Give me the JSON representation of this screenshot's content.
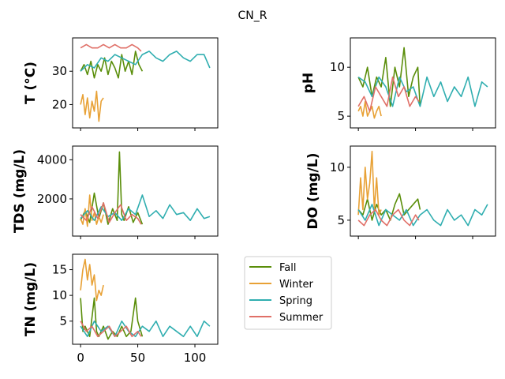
{
  "chart_data": {
    "title": "CN_R",
    "type": "line",
    "legend": {
      "placement": "right of bottom-left panel",
      "entries": [
        "Fall",
        "Winter",
        "Spring",
        "Summer"
      ]
    },
    "series_colors": {
      "Fall": "#5a8e0a",
      "Winter": "#e8a135",
      "Spring": "#30aeb0",
      "Summer": "#e07068"
    },
    "xlim": [
      -7,
      120
    ],
    "x_ticks": [
      0,
      50,
      100
    ],
    "x_tick_labels": [
      "0",
      "50",
      "100"
    ],
    "panels": [
      {
        "ylabel": "T  (°C)",
        "ylim": [
          13,
          40
        ],
        "y_ticks": [
          20,
          30
        ],
        "y_tick_labels": [
          "20",
          "30"
        ],
        "x_tick_labels_visible": false,
        "series": [
          {
            "name": "Fall",
            "x": [
              0,
              3,
              6,
              9,
              12,
              15,
              18,
              21,
              24,
              27,
              30,
              33,
              36,
              39,
              42,
              45,
              48,
              51,
              54
            ],
            "values": [
              30,
              32,
              29,
              33,
              28,
              32,
              30,
              34,
              29,
              33,
              31,
              28,
              35,
              30,
              33,
              29,
              36,
              32,
              30
            ]
          },
          {
            "name": "Winter",
            "x": [
              0,
              2,
              4,
              6,
              8,
              10,
              12,
              14,
              16,
              18,
              20
            ],
            "values": [
              20,
              23,
              17,
              22,
              16,
              21,
              18,
              24,
              15,
              21,
              22
            ]
          },
          {
            "name": "Spring",
            "x": [
              0,
              6,
              12,
              18,
              24,
              30,
              36,
              42,
              48,
              54,
              60,
              66,
              72,
              78,
              84,
              90,
              96,
              102,
              108,
              113
            ],
            "values": [
              30,
              32,
              31,
              34,
              33,
              35,
              34,
              33,
              32,
              35,
              36,
              34,
              33,
              35,
              36,
              34,
              33,
              35,
              35,
              31
            ]
          },
          {
            "name": "Summer",
            "x": [
              0,
              5,
              10,
              15,
              20,
              25,
              30,
              35,
              40,
              45,
              50,
              53
            ],
            "values": [
              37,
              38,
              37,
              37,
              38,
              37,
              38,
              37,
              37,
              38,
              37,
              36
            ]
          }
        ]
      },
      {
        "ylabel": "pH",
        "ylim": [
          3.8,
          13
        ],
        "y_ticks": [
          5,
          10
        ],
        "y_tick_labels": [
          "5",
          "10"
        ],
        "x_tick_labels_visible": false,
        "series": [
          {
            "name": "Fall",
            "x": [
              0,
              4,
              8,
              12,
              16,
              20,
              24,
              28,
              32,
              36,
              40,
              44,
              48,
              52,
              54
            ],
            "values": [
              9,
              8,
              10,
              7,
              9,
              8,
              11,
              6,
              10,
              8,
              12,
              7,
              9,
              10,
              6
            ]
          },
          {
            "name": "Winter",
            "x": [
              0,
              2,
              4,
              6,
              8,
              10,
              12,
              14,
              16,
              18,
              20
            ],
            "values": [
              5.5,
              6,
              5,
              6.5,
              5,
              5.5,
              6,
              4.8,
              5.5,
              6,
              5
            ]
          },
          {
            "name": "Spring",
            "x": [
              0,
              6,
              12,
              18,
              24,
              30,
              36,
              42,
              48,
              54,
              60,
              66,
              72,
              78,
              84,
              90,
              96,
              102,
              108,
              113
            ],
            "values": [
              9,
              8.5,
              7,
              9,
              8,
              6,
              9,
              7.5,
              8,
              6,
              9,
              7,
              8.5,
              6.5,
              8,
              7,
              9,
              6,
              8.5,
              8
            ]
          },
          {
            "name": "Summer",
            "x": [
              0,
              5,
              10,
              15,
              20,
              25,
              30,
              35,
              40,
              45,
              50,
              53
            ],
            "values": [
              6,
              7,
              5.5,
              8,
              7,
              6,
              9,
              7,
              8,
              6,
              7,
              6.5
            ]
          }
        ]
      },
      {
        "ylabel": "TDS (mg/L)",
        "ylim": [
          100,
          4700
        ],
        "y_ticks": [
          2000,
          4000
        ],
        "y_tick_labels": [
          "2000",
          "4000"
        ],
        "x_tick_labels_visible": false,
        "series": [
          {
            "name": "Fall",
            "x": [
              0,
              4,
              8,
              12,
              16,
              20,
              24,
              28,
              32,
              34,
              36,
              38,
              42,
              46,
              50,
              54
            ],
            "values": [
              900,
              1400,
              800,
              2300,
              1000,
              1800,
              700,
              1500,
              900,
              4400,
              1200,
              900,
              1600,
              800,
              1300,
              700
            ]
          },
          {
            "name": "Winter",
            "x": [
              0,
              2,
              4,
              6,
              8,
              10,
              12,
              14,
              16,
              18,
              20
            ],
            "values": [
              1000,
              700,
              1500,
              600,
              2200,
              900,
              1300,
              700,
              1100,
              800,
              1200
            ]
          },
          {
            "name": "Spring",
            "x": [
              0,
              6,
              12,
              18,
              24,
              30,
              36,
              42,
              48,
              54,
              60,
              66,
              72,
              78,
              84,
              90,
              96,
              102,
              108,
              113
            ],
            "values": [
              1000,
              1400,
              900,
              1600,
              1100,
              1300,
              900,
              1500,
              1200,
              2200,
              1100,
              1400,
              1000,
              1700,
              1200,
              1300,
              900,
              1500,
              1000,
              1100
            ]
          },
          {
            "name": "Summer",
            "x": [
              0,
              5,
              10,
              15,
              20,
              25,
              30,
              35,
              40,
              45,
              50,
              53
            ],
            "values": [
              1200,
              900,
              1600,
              1000,
              1800,
              800,
              1300,
              1700,
              900,
              1200,
              1000,
              700
            ]
          }
        ]
      },
      {
        "ylabel": "DO (mg/L)",
        "ylim": [
          3.5,
          12
        ],
        "y_ticks": [
          5,
          10
        ],
        "y_tick_labels": [
          "5",
          "10"
        ],
        "x_tick_labels_visible": false,
        "series": [
          {
            "name": "Fall",
            "x": [
              0,
              4,
              8,
              12,
              16,
              20,
              24,
              28,
              32,
              36,
              40,
              44,
              48,
              52,
              54
            ],
            "values": [
              6,
              5.5,
              7,
              5,
              6.5,
              5.5,
              6,
              5,
              6.5,
              7.5,
              5.5,
              6,
              6.5,
              7,
              6
            ]
          },
          {
            "name": "Winter",
            "x": [
              0,
              2,
              4,
              6,
              8,
              10,
              12,
              14,
              16,
              18,
              20
            ],
            "values": [
              5.5,
              9,
              6,
              10,
              7,
              8.5,
              11.5,
              6,
              9,
              5.5,
              6
            ]
          },
          {
            "name": "Spring",
            "x": [
              0,
              6,
              12,
              18,
              24,
              30,
              36,
              42,
              48,
              54,
              60,
              66,
              72,
              78,
              84,
              90,
              96,
              102,
              108,
              113
            ],
            "values": [
              6,
              5,
              6.5,
              4.5,
              6,
              5.5,
              5,
              6,
              4.5,
              5.5,
              6,
              5,
              4.5,
              6,
              5,
              5.5,
              4.5,
              6,
              5.5,
              6.5
            ]
          },
          {
            "name": "Summer",
            "x": [
              0,
              5,
              10,
              15,
              20,
              25,
              30,
              35,
              40,
              45,
              50,
              53
            ],
            "values": [
              5,
              4.5,
              5.5,
              6,
              5,
              4.5,
              5.5,
              6,
              5,
              4.5,
              5.5,
              5
            ]
          }
        ]
      },
      {
        "ylabel": "TN (mg/L)",
        "ylim": [
          0.5,
          18
        ],
        "y_ticks": [
          5,
          10,
          15
        ],
        "y_tick_labels": [
          "5",
          "10",
          "15"
        ],
        "x_tick_labels_visible": true,
        "series": [
          {
            "name": "Fall",
            "x": [
              0,
              2,
              4,
              8,
              12,
              14,
              16,
              20,
              24,
              28,
              32,
              36,
              40,
              44,
              48,
              50,
              54
            ],
            "values": [
              9.5,
              3,
              4,
              2,
              9.5,
              3,
              2,
              4,
              1.5,
              3,
              2,
              4,
              2,
              3,
              9.5,
              5,
              2
            ]
          },
          {
            "name": "Winter",
            "x": [
              0,
              2,
              4,
              6,
              8,
              10,
              12,
              14,
              16,
              18,
              20
            ],
            "values": [
              11,
              15,
              17,
              13,
              16,
              12,
              14,
              9,
              11,
              10,
              12
            ]
          },
          {
            "name": "Spring",
            "x": [
              0,
              6,
              12,
              18,
              24,
              30,
              36,
              42,
              48,
              54,
              60,
              66,
              72,
              78,
              84,
              90,
              96,
              102,
              108,
              113
            ],
            "values": [
              4,
              2,
              5,
              3,
              4,
              2,
              5,
              3,
              2,
              4,
              3,
              5,
              2,
              4,
              3,
              2,
              4,
              2,
              5,
              4
            ]
          },
          {
            "name": "Summer",
            "x": [
              0,
              5,
              10,
              15,
              20,
              25,
              30,
              35,
              40,
              45,
              50,
              53
            ],
            "values": [
              5,
              3,
              4,
              2,
              3,
              4,
              2,
              3,
              4,
              2,
              3,
              2
            ]
          }
        ]
      }
    ]
  }
}
